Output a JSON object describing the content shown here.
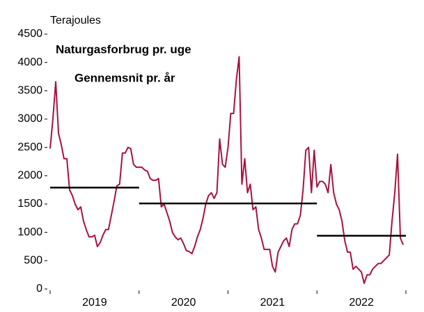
{
  "chart_data": {
    "type": "line",
    "y_label": "Terajoules",
    "categories": [
      "2019",
      "2020",
      "2021",
      "2022"
    ],
    "xlim": [
      2019,
      2023
    ],
    "xticks": [
      2019,
      2020,
      2021,
      2022,
      2023
    ],
    "ylim": [
      0,
      4500
    ],
    "yticks": [
      0,
      500,
      1000,
      1500,
      2000,
      2500,
      3000,
      3500,
      4000,
      4500
    ],
    "series": [
      {
        "name": "Naturgasforbrug pr. uge",
        "color": "#a8123e",
        "x": [
          2019,
          2019.031,
          2019.063,
          2019.094,
          2019.125,
          2019.156,
          2019.188,
          2019.219,
          2019.25,
          2019.281,
          2019.313,
          2019.344,
          2019.375,
          2019.406,
          2019.438,
          2019.469,
          2019.5,
          2019.531,
          2019.563,
          2019.594,
          2019.625,
          2019.656,
          2019.688,
          2019.719,
          2019.75,
          2019.781,
          2019.813,
          2019.844,
          2019.875,
          2019.906,
          2019.938,
          2019.969,
          2020,
          2020.031,
          2020.063,
          2020.094,
          2020.125,
          2020.156,
          2020.188,
          2020.219,
          2020.25,
          2020.281,
          2020.313,
          2020.344,
          2020.375,
          2020.406,
          2020.438,
          2020.469,
          2020.5,
          2020.531,
          2020.563,
          2020.594,
          2020.625,
          2020.656,
          2020.688,
          2020.719,
          2020.75,
          2020.781,
          2020.813,
          2020.844,
          2020.875,
          2020.906,
          2020.938,
          2020.969,
          2021,
          2021.031,
          2021.063,
          2021.094,
          2021.125,
          2021.156,
          2021.188,
          2021.219,
          2021.25,
          2021.281,
          2021.313,
          2021.344,
          2021.375,
          2021.406,
          2021.438,
          2021.469,
          2021.5,
          2021.531,
          2021.563,
          2021.594,
          2021.625,
          2021.656,
          2021.688,
          2021.719,
          2021.75,
          2021.781,
          2021.813,
          2021.844,
          2021.875,
          2021.906,
          2021.938,
          2021.969,
          2022,
          2022.031,
          2022.063,
          2022.094,
          2022.125,
          2022.156,
          2022.188,
          2022.219,
          2022.25,
          2022.281,
          2022.313,
          2022.344,
          2022.375,
          2022.406,
          2022.438,
          2022.469,
          2022.5,
          2022.531,
          2022.563,
          2022.594,
          2022.625,
          2022.656,
          2022.688,
          2022.719,
          2022.75,
          2022.781,
          2022.813,
          2022.844,
          2022.875,
          2022.906,
          2022.938,
          2022.969
        ],
        "values": [
          2480,
          3000,
          3660,
          2750,
          2550,
          2300,
          2300,
          1750,
          1650,
          1500,
          1400,
          1450,
          1200,
          1050,
          920,
          920,
          950,
          750,
          820,
          950,
          1050,
          1050,
          1300,
          1550,
          1820,
          1850,
          2400,
          2400,
          2500,
          2480,
          2200,
          2150,
          2150,
          2150,
          2100,
          2080,
          1950,
          1920,
          1920,
          1950,
          1450,
          1500,
          1350,
          1200,
          1000,
          920,
          870,
          900,
          800,
          680,
          660,
          625,
          750,
          920,
          1050,
          1250,
          1500,
          1650,
          1700,
          1600,
          1700,
          2650,
          2200,
          2150,
          2500,
          3100,
          3100,
          3700,
          4100,
          1850,
          2300,
          1700,
          1850,
          1400,
          1450,
          1050,
          900,
          700,
          700,
          700,
          400,
          300,
          650,
          750,
          850,
          900,
          750,
          1050,
          1150,
          1150,
          1300,
          1750,
          2450,
          2500,
          1700,
          2450,
          1800,
          1900,
          1900,
          1850,
          1700,
          2200,
          1700,
          1500,
          1400,
          1200,
          850,
          650,
          650,
          350,
          400,
          350,
          300,
          100,
          250,
          250,
          350,
          400,
          450,
          450,
          500,
          550,
          600,
          1200,
          1700,
          2380,
          900,
          780
        ]
      },
      {
        "name": "Gennemsnit pr. år",
        "color": "#000000",
        "values": [
          1790,
          1510,
          1510,
          940
        ]
      }
    ]
  }
}
